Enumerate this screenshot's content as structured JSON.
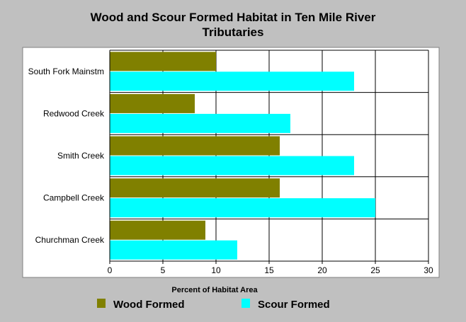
{
  "chart_data": {
    "type": "bar",
    "orientation": "horizontal",
    "title_lines": [
      "Wood and Scour Formed Habitat in Ten Mile River",
      "Tributaries"
    ],
    "xlabel": "Percent of Habitat Area",
    "categories": [
      "South Fork Mainstm",
      "Redwood Creek",
      "Smith Creek",
      "Campbell Creek",
      "Churchman Creek"
    ],
    "series": [
      {
        "name": "Wood Formed",
        "color": "#808000",
        "values": [
          10,
          8,
          16,
          16,
          9
        ]
      },
      {
        "name": "Scour Formed",
        "color": "#00ffff",
        "values": [
          23,
          17,
          23,
          25,
          12
        ]
      }
    ],
    "xlim": [
      0,
      30
    ],
    "xticks": [
      0,
      5,
      10,
      15,
      20,
      25,
      30
    ],
    "grid": true,
    "legend_position": "bottom"
  }
}
